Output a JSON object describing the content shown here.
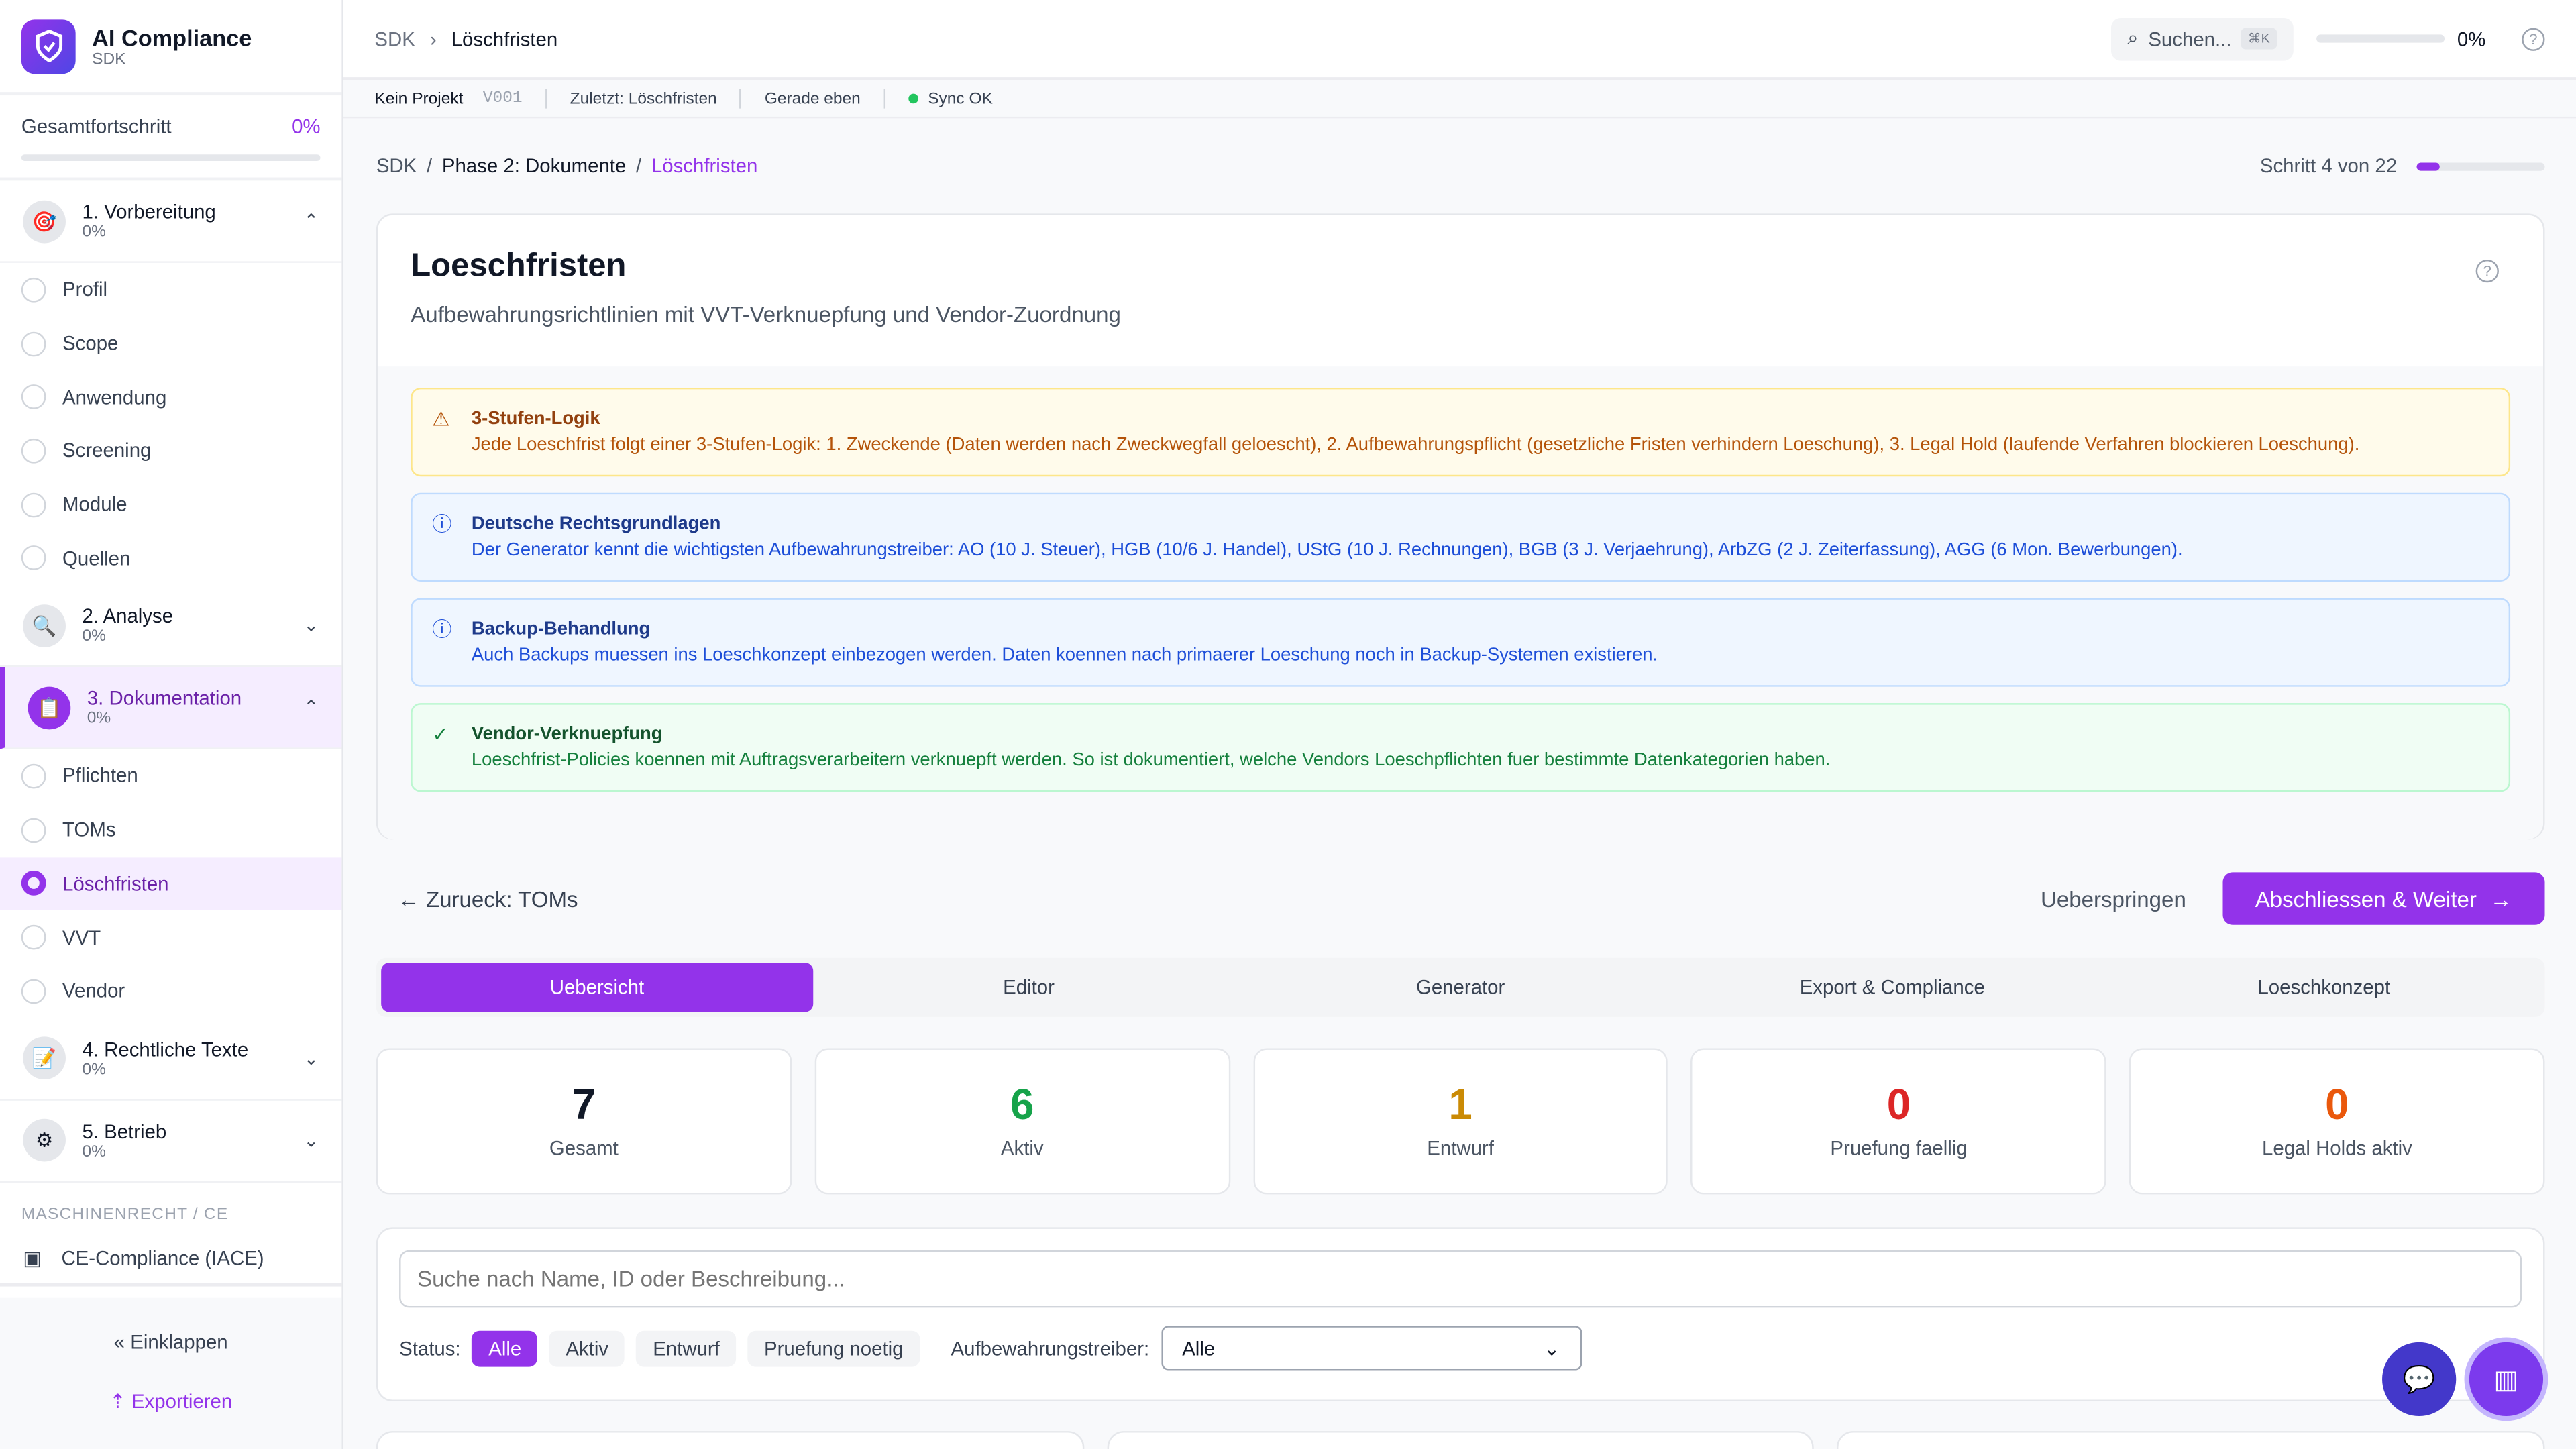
{
  "app": {
    "title": "AI Compliance",
    "subtitle": "SDK"
  },
  "progress": {
    "label": "Gesamtfortschritt",
    "value": "0%",
    "fraction": 0
  },
  "phases": [
    {
      "title": "1. Vorbereitung",
      "pct": "0%",
      "icon": "target-icon",
      "steps": [
        "Profil",
        "Scope",
        "Anwendung",
        "Screening",
        "Module",
        "Quellen"
      ]
    },
    {
      "title": "2. Analyse",
      "pct": "0%",
      "icon": "magnifier-icon"
    },
    {
      "title": "3. Dokumentation",
      "pct": "0%",
      "icon": "clipboard-icon",
      "steps": [
        "Pflichten",
        "TOMs",
        "Löschfristen",
        "VVT",
        "Vendor"
      ],
      "current": "Löschfristen"
    },
    {
      "title": "4. Rechtliche Texte",
      "pct": "0%",
      "icon": "pencil-icon"
    },
    {
      "title": "5. Betrieb",
      "pct": "0%",
      "icon": "gear-icon"
    }
  ],
  "section": {
    "label": "MASCHINENRECHT / CE",
    "item": "CE-Compliance (IACE)"
  },
  "footer": {
    "collapse": "Einklappen",
    "export": "Exportieren"
  },
  "topbar": {
    "crumb_root": "SDK",
    "crumb_current": "Löschfristen",
    "search": "Suchen...",
    "shortcut": "⌘K",
    "progress": "0%"
  },
  "meta": {
    "project": "Kein Projekt",
    "version": "V001",
    "last": "Zuletzt: Löschfristen",
    "time": "Gerade eben",
    "sync": "Sync OK"
  },
  "breadcrumb": {
    "items": [
      "SDK",
      "Phase 2: Dokumente",
      "Löschfristen"
    ],
    "step": "Schritt 4 von 22",
    "step_fraction": 0.18
  },
  "page": {
    "title": "Loeschfristen",
    "subtitle": "Aufbewahrungsrichtlinien mit VVT-Verknuepfung und Vendor-Zuordnung"
  },
  "alerts": [
    {
      "title": "3-Stufen-Logik",
      "text": "Jede Loeschfrist folgt einer 3-Stufen-Logik: 1. Zweckende (Daten werden nach Zweckwegfall geloescht), 2. Aufbewahrungspflicht (gesetzliche Fristen verhindern Loeschung), 3. Legal Hold (laufende Verfahren blockieren Loeschung)."
    },
    {
      "title": "Deutsche Rechtsgrundlagen",
      "text": "Der Generator kennt die wichtigsten Aufbewahrungstreiber: AO (10 J. Steuer), HGB (10/6 J. Handel), UStG (10 J. Rechnungen), BGB (3 J. Verjaehrung), ArbZG (2 J. Zeiterfassung), AGG (6 Mon. Bewerbungen)."
    },
    {
      "title": "Backup-Behandlung",
      "text": "Auch Backups muessen ins Loeschkonzept einbezogen werden. Daten koennen nach primaerer Loeschung noch in Backup-Systemen existieren."
    },
    {
      "title": "Vendor-Verknuepfung",
      "text": "Loeschfrist-Policies koennen mit Auftragsverarbeitern verknuepft werden. So ist dokumentiert, welche Vendors Loeschpflichten fuer bestimmte Datenkategorien haben."
    }
  ],
  "nav": {
    "back": "Zurueck: TOMs",
    "skip": "Ueberspringen",
    "next": "Abschliessen & Weiter"
  },
  "tabs": [
    "Uebersicht",
    "Editor",
    "Generator",
    "Export & Compliance",
    "Loeschkonzept"
  ],
  "stats": [
    {
      "value": "7",
      "label": "Gesamt",
      "color": "#111827"
    },
    {
      "value": "6",
      "label": "Aktiv",
      "color": "#16a34a"
    },
    {
      "value": "1",
      "label": "Entwurf",
      "color": "#ca8a04"
    },
    {
      "value": "0",
      "label": "Pruefung faellig",
      "color": "#dc2626"
    },
    {
      "value": "0",
      "label": "Legal Holds aktiv",
      "color": "#ea580c"
    }
  ],
  "filter": {
    "placeholder": "Suche nach Name, ID oder Beschreibung...",
    "status_label": "Status:",
    "chips": [
      "Alle",
      "Aktiv",
      "Entwurf",
      "Pruefung noetig"
    ],
    "driver_label": "Aufbewahrungstreiber:",
    "driver_value": "Alle"
  }
}
